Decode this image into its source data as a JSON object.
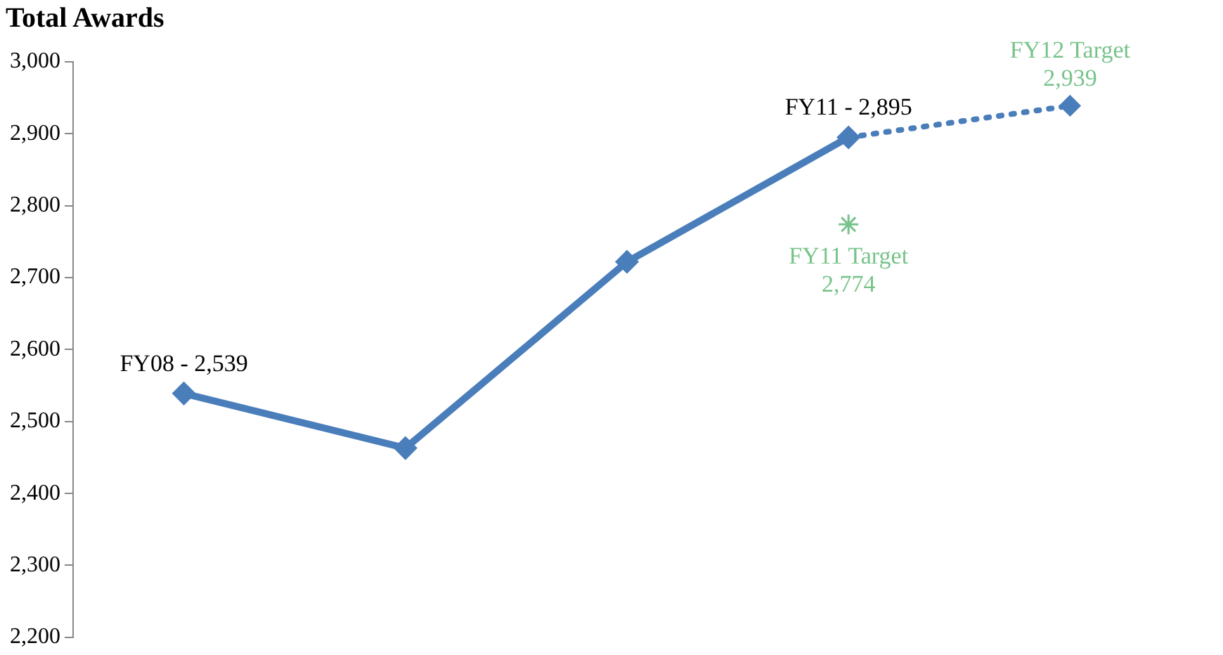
{
  "chart_data": {
    "type": "line",
    "title": "Total Awards",
    "categories": [
      null,
      null,
      null,
      null,
      null
    ],
    "ylim": [
      2200,
      3000
    ],
    "yticks": [
      {
        "value": 2200,
        "label": "2,200"
      },
      {
        "value": 2300,
        "label": "2,300"
      },
      {
        "value": 2400,
        "label": "2,400"
      },
      {
        "value": 2500,
        "label": "2,500"
      },
      {
        "value": 2600,
        "label": "2,600"
      },
      {
        "value": 2700,
        "label": "2,700"
      },
      {
        "value": 2800,
        "label": "2,800"
      },
      {
        "value": 2900,
        "label": "2,900"
      },
      {
        "value": 3000,
        "label": "3,000"
      }
    ],
    "grid": false,
    "legend": false,
    "marker": "diamond",
    "series": [
      {
        "color": "#4a7ebb",
        "values": [
          2539,
          2463,
          2722,
          2895,
          null
        ],
        "value_labels": [
          "FY08 - 2,539",
          null,
          null,
          "FY11 - 2,895",
          null
        ]
      },
      {
        "color": "#4a7ebb",
        "values": [
          null,
          null,
          null,
          2895,
          2939
        ],
        "line_style": "dotted"
      },
      {
        "type": "scatter",
        "color": "#77c38a",
        "marker": "cross",
        "values": [
          null,
          null,
          null,
          2774,
          null
        ]
      }
    ],
    "annotations": [
      {
        "text": "FY11 Target\n2,774",
        "y": 2774
      },
      {
        "text": "FY12 Target\n2,939",
        "y": 2939
      }
    ]
  }
}
